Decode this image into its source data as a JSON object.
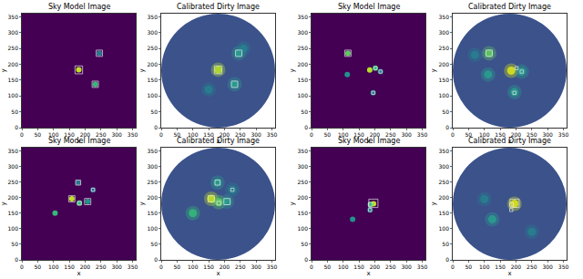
{
  "chart_data": [
    {
      "type": "scatter",
      "title": "Sky Model Image",
      "x_label": "x",
      "y_label": "y",
      "marker": "dot",
      "x": [
        180,
        245,
        232
      ],
      "y": [
        183,
        235,
        137
      ],
      "colors": [
        "#c2df23",
        "#2a788e",
        "#35b779"
      ],
      "boxes": [
        [
          168,
          170,
          192,
          195
        ],
        [
          235,
          225,
          255,
          245
        ],
        [
          222,
          127,
          242,
          147
        ]
      ],
      "xlim": [
        0,
        360
      ],
      "ylim": [
        0,
        360
      ],
      "xticks": [
        0,
        50,
        100,
        150,
        200,
        250,
        300,
        350
      ],
      "yticks": [
        0,
        50,
        100,
        150,
        200,
        250,
        300,
        350
      ]
    },
    {
      "type": "scatter",
      "title": "Calibrated Dirty Image",
      "x_label": "x",
      "y_label": "y",
      "marker": "blob",
      "x": [
        180,
        245,
        232,
        150,
        260
      ],
      "y": [
        183,
        235,
        137,
        120,
        250
      ],
      "colors": [
        "#b5de2b",
        "#2a9d8f",
        "#2a9d8f",
        "#277f8e",
        "#277f8e"
      ],
      "boxes": [
        [
          168,
          170,
          192,
          195
        ],
        [
          235,
          225,
          255,
          245
        ],
        [
          222,
          127,
          242,
          147
        ]
      ],
      "xlim": [
        0,
        360
      ],
      "ylim": [
        0,
        360
      ],
      "xticks": [
        0,
        50,
        100,
        150,
        200,
        250,
        300,
        350
      ],
      "yticks": [
        0,
        50,
        100,
        150,
        200,
        250,
        300,
        350
      ]
    },
    {
      "type": "scatter",
      "title": "Sky Model Image",
      "x_label": "x",
      "y_label": "y",
      "marker": "dot",
      "x": [
        115,
        113,
        184,
        202,
        218,
        195
      ],
      "y": [
        235,
        168,
        182,
        188,
        177,
        110
      ],
      "colors": [
        "#5ec962",
        "#21918c",
        "#b5de2b",
        "#35b779",
        "#2a788e",
        "#2a788e"
      ],
      "boxes": [
        [
          105,
          225,
          125,
          245
        ],
        [
          197,
          183,
          207,
          193
        ],
        [
          213,
          172,
          223,
          182
        ],
        [
          190,
          105,
          200,
          115
        ]
      ],
      "xlim": [
        0,
        360
      ],
      "ylim": [
        0,
        360
      ],
      "xticks": [
        0,
        50,
        100,
        150,
        200,
        250,
        300,
        350
      ],
      "yticks": [
        0,
        50,
        100,
        150,
        200,
        250,
        300,
        350
      ]
    },
    {
      "type": "scatter",
      "title": "Calibrated Dirty Image",
      "x_label": "x",
      "y_label": "y",
      "marker": "blob",
      "x": [
        115,
        112,
        185,
        218,
        195,
        70
      ],
      "y": [
        235,
        168,
        180,
        177,
        112,
        230
      ],
      "colors": [
        "#5ec962",
        "#2a9d8f",
        "#d8e219",
        "#2a9d8f",
        "#2a9d8f",
        "#277f8e"
      ],
      "boxes": [
        [
          105,
          225,
          125,
          245
        ],
        [
          197,
          183,
          207,
          193
        ],
        [
          213,
          172,
          223,
          182
        ],
        [
          190,
          105,
          200,
          115
        ]
      ],
      "xlim": [
        0,
        360
      ],
      "ylim": [
        0,
        360
      ],
      "xticks": [
        0,
        50,
        100,
        150,
        200,
        250,
        300,
        350
      ],
      "yticks": [
        0,
        50,
        100,
        150,
        200,
        250,
        300,
        350
      ]
    },
    {
      "type": "scatter",
      "title": "Sky Model Image",
      "x_label": "x",
      "y_label": "y",
      "marker": "dot",
      "x": [
        158,
        105,
        178,
        182,
        208,
        225
      ],
      "y": [
        196,
        150,
        248,
        182,
        187,
        225
      ],
      "colors": [
        "#c2df23",
        "#35b779",
        "#2a788e",
        "#35b779",
        "#21918c",
        "#31688e"
      ],
      "boxes": [
        [
          148,
          186,
          168,
          206
        ],
        [
          170,
          240,
          186,
          256
        ],
        [
          176,
          176,
          188,
          188
        ],
        [
          198,
          177,
          218,
          197
        ],
        [
          220,
          220,
          230,
          230
        ]
      ],
      "xlim": [
        0,
        360
      ],
      "ylim": [
        0,
        360
      ],
      "xticks": [
        0,
        50,
        100,
        150,
        200,
        250,
        300,
        350
      ],
      "yticks": [
        0,
        50,
        100,
        150,
        200,
        250,
        300,
        350
      ]
    },
    {
      "type": "scatter",
      "title": "Calibrated Dirty Image",
      "x_label": "x",
      "y_label": "y",
      "marker": "blob",
      "x": [
        158,
        100,
        178,
        182,
        208,
        225
      ],
      "y": [
        196,
        150,
        248,
        185,
        187,
        225
      ],
      "colors": [
        "#c2df23",
        "#35b779",
        "#2a9d8f",
        "#5ec962",
        "#2a9d8f",
        "#277f8e"
      ],
      "boxes": [
        [
          148,
          186,
          168,
          206
        ],
        [
          170,
          240,
          186,
          256
        ],
        [
          176,
          176,
          188,
          188
        ],
        [
          198,
          177,
          218,
          197
        ],
        [
          220,
          220,
          230,
          230
        ]
      ],
      "xlim": [
        0,
        360
      ],
      "ylim": [
        0,
        360
      ],
      "xticks": [
        0,
        50,
        100,
        150,
        200,
        250,
        300,
        350
      ],
      "yticks": [
        0,
        50,
        100,
        150,
        200,
        250,
        300,
        350
      ]
    },
    {
      "type": "scatter",
      "title": "Sky Model Image",
      "x_label": "x",
      "y_label": "y",
      "marker": "dot",
      "x": [
        196,
        186,
        130,
        185
      ],
      "y": [
        180,
        178,
        130,
        160
      ],
      "colors": [
        "#c2df23",
        "#35b779",
        "#21918c",
        "#2a788e"
      ],
      "boxes": [
        [
          181,
          168,
          210,
          195
        ],
        [
          180,
          172,
          192,
          184
        ],
        [
          180,
          155,
          190,
          165
        ]
      ],
      "xlim": [
        0,
        360
      ],
      "ylim": [
        0,
        360
      ],
      "xticks": [
        0,
        50,
        100,
        150,
        200,
        250,
        300,
        350
      ],
      "yticks": [
        0,
        50,
        100,
        150,
        200,
        250,
        300,
        350
      ]
    },
    {
      "type": "scatter",
      "title": "Calibrated Dirty Image",
      "x_label": "x",
      "y_label": "y",
      "marker": "blob",
      "x": [
        195,
        125,
        100,
        250
      ],
      "y": [
        180,
        130,
        195,
        90
      ],
      "colors": [
        "#d8e219",
        "#2a9d8f",
        "#277f8e",
        "#277f8e"
      ],
      "boxes": [
        [
          181,
          168,
          210,
          195
        ],
        [
          180,
          172,
          192,
          184
        ],
        [
          180,
          155,
          190,
          165
        ]
      ],
      "xlim": [
        0,
        360
      ],
      "ylim": [
        0,
        360
      ],
      "xticks": [
        0,
        50,
        100,
        150,
        200,
        250,
        300,
        350
      ],
      "yticks": [
        0,
        50,
        100,
        150,
        200,
        250,
        300,
        350
      ]
    }
  ]
}
